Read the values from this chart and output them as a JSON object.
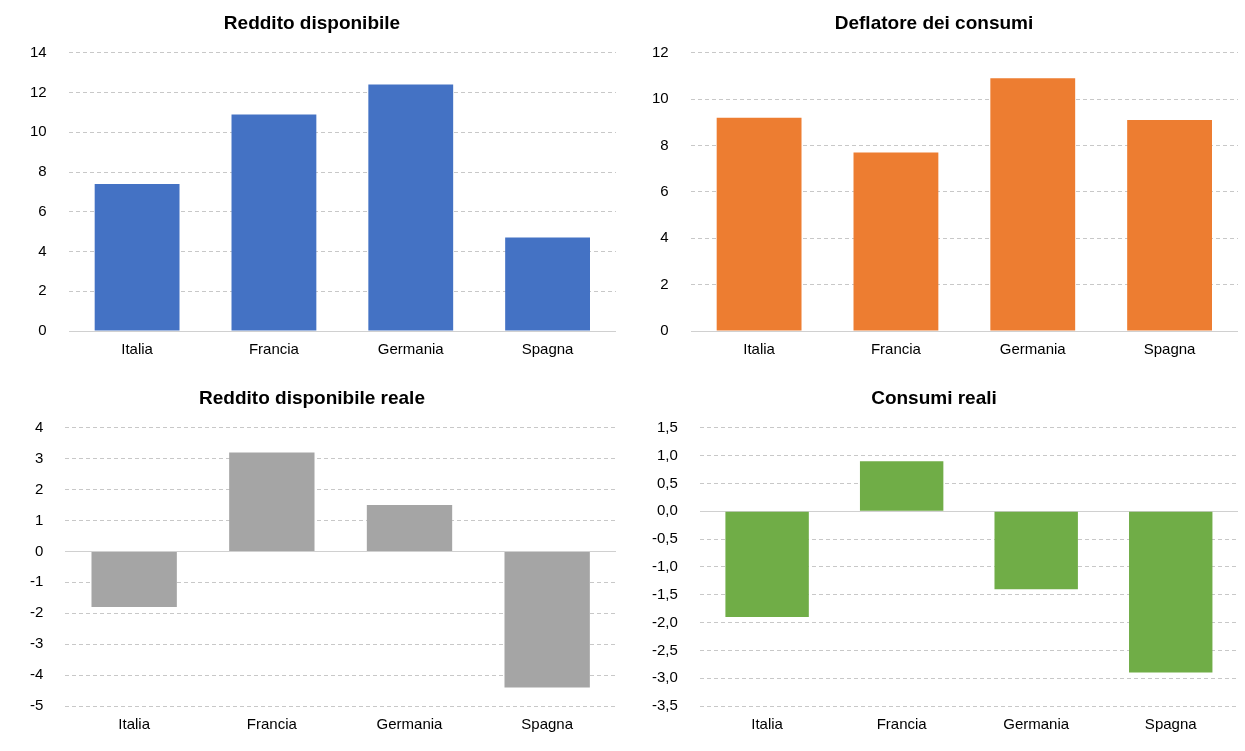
{
  "chart_data": [
    {
      "type": "bar",
      "title": "Reddito disponibile",
      "categories": [
        "Italia",
        "Francia",
        "Germania",
        "Spagna"
      ],
      "values": [
        7.4,
        10.9,
        12.4,
        4.7
      ],
      "color": "#4472c4",
      "ylim": [
        0,
        14
      ],
      "yticks": [
        0,
        2,
        4,
        6,
        8,
        10,
        12,
        14
      ],
      "grid": "y"
    },
    {
      "type": "bar",
      "title": "Deflatore dei consumi",
      "categories": [
        "Italia",
        "Francia",
        "Germania",
        "Spagna"
      ],
      "values": [
        9.2,
        7.7,
        10.9,
        9.1
      ],
      "color": "#ed7d31",
      "ylim": [
        0,
        12
      ],
      "yticks": [
        0,
        2,
        4,
        6,
        8,
        10,
        12
      ],
      "grid": "y"
    },
    {
      "type": "bar",
      "title": "Reddito disponibile reale",
      "categories": [
        "Italia",
        "Francia",
        "Germania",
        "Spagna"
      ],
      "values": [
        -1.8,
        3.2,
        1.5,
        -4.4
      ],
      "color": "#a5a5a5",
      "ylim": [
        -5,
        4
      ],
      "yticks": [
        -5,
        -4,
        -3,
        -2,
        -1,
        0,
        1,
        2,
        3,
        4
      ],
      "grid": "y"
    },
    {
      "type": "bar",
      "title": "Consumi reali",
      "categories": [
        "Italia",
        "Francia",
        "Germania",
        "Spagna"
      ],
      "values": [
        -1.9,
        0.9,
        -1.4,
        -2.9
      ],
      "color": "#70ad47",
      "ylim": [
        -3.5,
        1.5
      ],
      "yticks": [
        {
          "value": -3.5,
          "label": "-3,5"
        },
        {
          "value": -3,
          "label": "-3,0"
        },
        {
          "value": -2.5,
          "label": "-2,5"
        },
        {
          "value": -2,
          "label": "-2,0"
        },
        {
          "value": -1.5,
          "label": "-1,5"
        },
        {
          "value": -1,
          "label": "-1,0"
        },
        {
          "value": -0.5,
          "label": "-0,5"
        },
        {
          "value": 0,
          "label": "0,0"
        },
        {
          "value": 0.5,
          "label": "0,5"
        },
        {
          "value": 1,
          "label": "1,0"
        },
        {
          "value": 1.5,
          "label": "1,5"
        }
      ],
      "grid": "y"
    }
  ]
}
